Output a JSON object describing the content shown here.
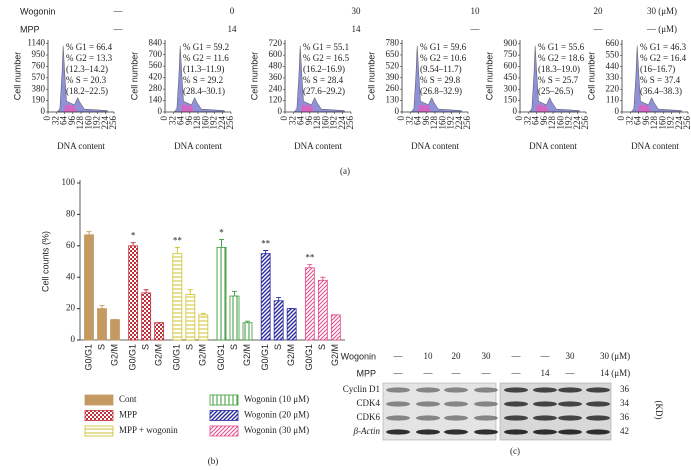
{
  "panel_a": {
    "rows": [
      {
        "label": "Wogonin",
        "values": [
          "—",
          "0",
          "30",
          "10",
          "20",
          "30 (μM)"
        ]
      },
      {
        "label": "MPP",
        "values": [
          "—",
          "14",
          "14",
          "—",
          "—",
          "— (μM)"
        ]
      }
    ],
    "label": "(a)"
  },
  "chart_data": [
    {
      "type": "flow",
      "ylabel": "Cell number",
      "xlabel": "DNA content",
      "ylim": [
        0,
        1200
      ],
      "yticks": [
        0,
        190,
        380,
        570,
        760,
        950,
        1140
      ],
      "xlim": [
        0,
        256
      ],
      "xticks": [
        0,
        32,
        64,
        96,
        128,
        160,
        192,
        224,
        256
      ],
      "stats": [
        "% G1 = 66.4",
        "% G2 = 13.3",
        "(12.3–14.2)",
        "% S = 20.3",
        "(18.2–22.5)"
      ]
    },
    {
      "type": "flow",
      "ylabel": "Cell number",
      "xlabel": "DNA content",
      "ylim": [
        0,
        880
      ],
      "yticks": [
        0,
        140,
        280,
        420,
        560,
        700,
        840
      ],
      "xlim": [
        0,
        256
      ],
      "xticks": [
        0,
        32,
        64,
        96,
        128,
        160,
        192,
        224,
        256
      ],
      "stats": [
        "% G1 = 59.2",
        "% G2 = 11.6",
        "(11.3–11.9)",
        "% S = 29.2",
        "(28.4–30.1)"
      ]
    },
    {
      "type": "flow",
      "ylabel": "Cell number",
      "xlabel": "DNA content",
      "ylim": [
        0,
        760
      ],
      "yticks": [
        0,
        120,
        240,
        360,
        480,
        600,
        720
      ],
      "xlim": [
        0,
        256
      ],
      "xticks": [
        0,
        32,
        64,
        96,
        128,
        160,
        192,
        224,
        256
      ],
      "stats": [
        "% G1 = 55.1",
        "% G2 = 16.5",
        "(16.2–16.9)",
        "% S = 28.4",
        "(27.6–29.2)"
      ]
    },
    {
      "type": "flow",
      "ylabel": "Cell number",
      "xlabel": "DNA content",
      "ylim": [
        0,
        820
      ],
      "yticks": [
        0,
        130,
        260,
        390,
        520,
        650,
        780
      ],
      "xlim": [
        0,
        256
      ],
      "xticks": [
        0,
        32,
        64,
        96,
        128,
        160,
        192,
        224,
        256
      ],
      "stats": [
        "% G1 = 59.6",
        "% G2 = 10.6",
        "(9.54–11.7)",
        "% S = 29.8",
        "(26.8–32.9)"
      ]
    },
    {
      "type": "flow",
      "ylabel": "Cell number",
      "xlabel": "DNA content",
      "ylim": [
        0,
        950
      ],
      "yticks": [
        0,
        150,
        300,
        450,
        600,
        750,
        900
      ],
      "xlim": [
        0,
        256
      ],
      "xticks": [
        0,
        32,
        64,
        96,
        128,
        160,
        192,
        224,
        256
      ],
      "stats": [
        "% G1 = 55.6",
        "% G2 = 18.6",
        "(18.3–19.0)",
        "% S = 25.7",
        "(25–26.5)"
      ]
    },
    {
      "type": "flow",
      "ylabel": "Cell number",
      "xlabel": "DNA content",
      "ylim": [
        0,
        700
      ],
      "yticks": [
        0,
        110,
        220,
        330,
        440,
        550,
        660
      ],
      "xlim": [
        0,
        256
      ],
      "xticks": [
        0,
        32,
        64,
        96,
        128,
        160,
        192,
        224,
        256
      ],
      "stats": [
        "% G1 = 46.3",
        "% G2 = 16.4",
        "(16–16.7)",
        "% S = 37.4",
        "(36.4–38.3)"
      ]
    },
    {
      "type": "bar",
      "ylabel": "Cell counts (%)",
      "ylim": [
        0,
        100
      ],
      "yticks": [
        0,
        20,
        40,
        60,
        80,
        100
      ],
      "categories": [
        "G0/G1",
        "S",
        "G2/M"
      ],
      "series": [
        {
          "name": "Cont",
          "color": "#c49a62",
          "values": [
            67,
            20,
            13
          ],
          "errors": [
            2,
            2,
            0
          ]
        },
        {
          "name": "MPP",
          "color": "#c0303a",
          "values": [
            60,
            30,
            11
          ],
          "errors": [
            2,
            2,
            0
          ],
          "annotation": "*"
        },
        {
          "name": "MPP + wogonin",
          "color": "#cfc030",
          "values": [
            55,
            29,
            16
          ],
          "errors": [
            4,
            3,
            1
          ],
          "annotation": "**"
        },
        {
          "name": "Wogonin (10 μM)",
          "color": "#3a9a3a",
          "values": [
            59,
            28,
            11
          ],
          "errors": [
            5,
            3,
            1
          ],
          "annotation": "*"
        },
        {
          "name": "Wogonin (20 μM)",
          "color": "#2a2aa0",
          "values": [
            55,
            25,
            20
          ],
          "errors": [
            2,
            2,
            0
          ],
          "annotation": "**"
        },
        {
          "name": "Wogonin (30 μM)",
          "color": "#e04a8a",
          "values": [
            46,
            38,
            16
          ],
          "errors": [
            2,
            2,
            0
          ],
          "annotation": "**"
        }
      ]
    }
  ],
  "panel_b": {
    "label": "(b)"
  },
  "panel_c": {
    "header": [
      {
        "label": "Wogonin",
        "values": [
          "—",
          "10",
          "20",
          "30",
          "—",
          "—",
          "30",
          "30 (μM)"
        ]
      },
      {
        "label": "MPP",
        "values": [
          "—",
          "—",
          "—",
          "—",
          "—",
          "14",
          "—",
          "14 (μM)"
        ]
      }
    ],
    "rows": [
      {
        "label": "Cyclin D1",
        "kd": "36"
      },
      {
        "label": "CDK4",
        "kd": "34"
      },
      {
        "label": "CDK6",
        "kd": "36"
      },
      {
        "label": "β-Actin",
        "kd": "42"
      }
    ],
    "unit": "(KD)",
    "label": "(c)"
  }
}
